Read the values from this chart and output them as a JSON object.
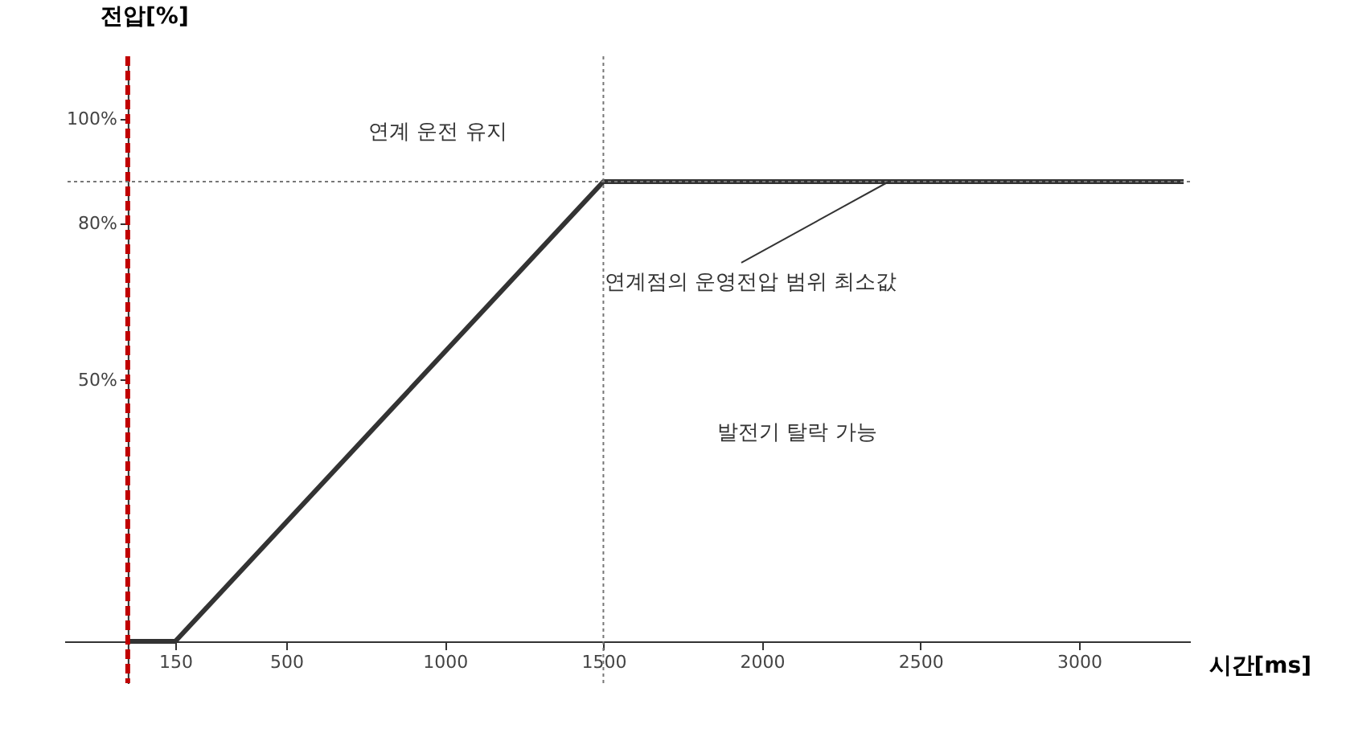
{
  "chart_data": {
    "type": "line",
    "xlabel": "시간[ms]",
    "ylabel": "전압[%]",
    "x": [
      0,
      150,
      1500,
      3330
    ],
    "series": [
      {
        "color": "#333333",
        "values": [
          0,
          0,
          88,
          88
        ]
      }
    ],
    "xlim": [
      -200,
      3350
    ],
    "ylim": [
      -8,
      112
    ],
    "xticks": [
      150,
      500,
      1000,
      1500,
      2000,
      2500,
      3000
    ],
    "yticks": [
      {
        "value": 50,
        "label": "50%"
      },
      {
        "value": 80,
        "label": "80%"
      },
      {
        "value": 100,
        "label": "100%"
      }
    ],
    "grid": false,
    "marker": "none",
    "line_style": "solid",
    "ref_lines": [
      {
        "axis": "x",
        "value": 0,
        "color": "#c00000",
        "line_style": "dashed"
      },
      {
        "axis": "y",
        "value": 88,
        "color": "#777777",
        "line_style": "dotted"
      },
      {
        "axis": "x",
        "value": 1500,
        "color": "#777777",
        "line_style": "dotted"
      }
    ],
    "annotations": [
      "연계 운전 유지",
      {
        "text": "연계점의 운영전압 범위 최소값",
        "x": 2400,
        "y": 88
      },
      "발전기 탈락 가능"
    ]
  }
}
